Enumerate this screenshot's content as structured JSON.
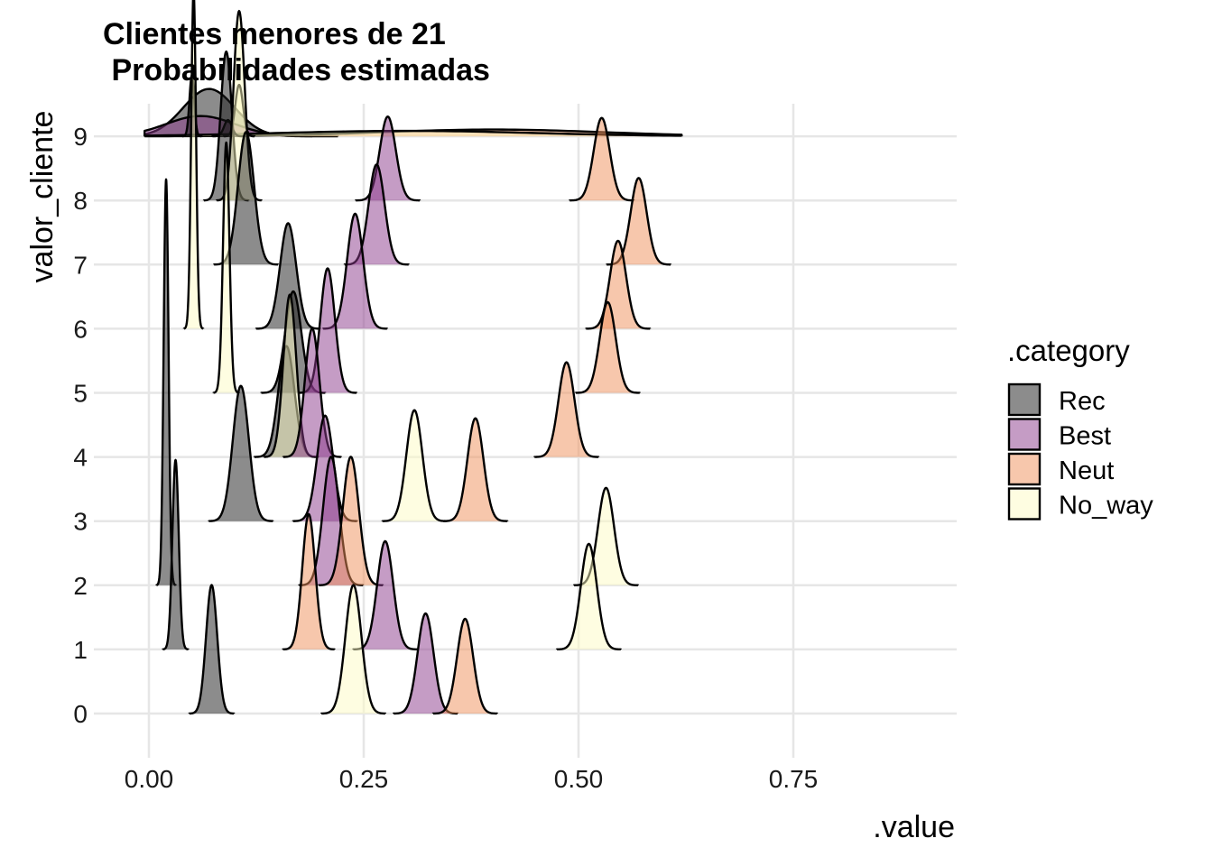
{
  "chart_data": {
    "type": "ridgeline",
    "title": [
      "Clientes menores de 21",
      " Probabilidades estimadas"
    ],
    "xlabel": ".value",
    "ylabel": "valor_cliente",
    "xlim": [
      -0.08,
      0.94
    ],
    "x_ticks": [
      {
        "value": 0.0,
        "label": "0.00"
      },
      {
        "value": 0.25,
        "label": "0.25"
      },
      {
        "value": 0.5,
        "label": "0.50"
      },
      {
        "value": 0.75,
        "label": "0.75"
      }
    ],
    "y_categories": [
      "0",
      "1",
      "2",
      "3",
      "4",
      "5",
      "6",
      "7",
      "8",
      "9"
    ],
    "grid": true,
    "legend": {
      "title": ".category",
      "position": "right",
      "entries": [
        {
          "name": "Rec",
          "color": "#1a1a1a"
        },
        {
          "name": "Best",
          "color": "#8c3a8c"
        },
        {
          "name": "Neut",
          "color": "#f0905a"
        },
        {
          "name": "No_way",
          "color": "#fdfbc4"
        }
      ]
    },
    "fill_opacity": 0.5,
    "series": [
      {
        "row": 0,
        "category": "Rec",
        "mean": 0.073,
        "sd": 0.0065,
        "height": 0.95
      },
      {
        "row": 0,
        "category": "No_way",
        "mean": 0.238,
        "sd": 0.0093,
        "height": 0.95
      },
      {
        "row": 0,
        "category": "Best",
        "mean": 0.322,
        "sd": 0.0093,
        "height": 0.74
      },
      {
        "row": 0,
        "category": "Neut",
        "mean": 0.368,
        "sd": 0.0093,
        "height": 0.7
      },
      {
        "row": 1,
        "category": "Rec",
        "mean": 0.031,
        "sd": 0.0037,
        "height": 1.4
      },
      {
        "row": 1,
        "category": "Neut",
        "mean": 0.186,
        "sd": 0.0075,
        "height": 1.0
      },
      {
        "row": 1,
        "category": "Best",
        "mean": 0.275,
        "sd": 0.0093,
        "height": 0.8
      },
      {
        "row": 1,
        "category": "No_way",
        "mean": 0.512,
        "sd": 0.0093,
        "height": 0.78
      },
      {
        "row": 2,
        "category": "Rec",
        "mean": 0.02,
        "sd": 0.0028,
        "height": 3.0
      },
      {
        "row": 2,
        "category": "Best",
        "mean": 0.212,
        "sd": 0.0093,
        "height": 0.95
      },
      {
        "row": 2,
        "category": "Neut",
        "mean": 0.235,
        "sd": 0.0093,
        "height": 0.95
      },
      {
        "row": 2,
        "category": "No_way",
        "mean": 0.532,
        "sd": 0.0093,
        "height": 0.72
      },
      {
        "row": 3,
        "category": "Rec",
        "mean": 0.107,
        "sd": 0.0093,
        "height": 1.0
      },
      {
        "row": 3,
        "category": "Best",
        "mean": 0.205,
        "sd": 0.0093,
        "height": 0.78
      },
      {
        "row": 3,
        "category": "No_way",
        "mean": 0.309,
        "sd": 0.0093,
        "height": 0.82
      },
      {
        "row": 3,
        "category": "Neut",
        "mean": 0.38,
        "sd": 0.0093,
        "height": 0.76
      },
      {
        "row": 4,
        "category": "Rec",
        "mean": 0.16,
        "sd": 0.0093,
        "height": 0.82
      },
      {
        "row": 4,
        "category": "No_way",
        "mean": 0.164,
        "sd": 0.0075,
        "height": 1.2
      },
      {
        "row": 4,
        "category": "Best",
        "mean": 0.19,
        "sd": 0.0084,
        "height": 0.95
      },
      {
        "row": 4,
        "category": "Neut",
        "mean": 0.486,
        "sd": 0.0093,
        "height": 0.7
      },
      {
        "row": 5,
        "category": "No_way",
        "mean": 0.09,
        "sd": 0.0037,
        "height": 1.85
      },
      {
        "row": 5,
        "category": "Rec",
        "mean": 0.168,
        "sd": 0.0093,
        "height": 0.75
      },
      {
        "row": 5,
        "category": "Best",
        "mean": 0.208,
        "sd": 0.0084,
        "height": 0.92
      },
      {
        "row": 5,
        "category": "Neut",
        "mean": 0.534,
        "sd": 0.0093,
        "height": 0.67
      },
      {
        "row": 6,
        "category": "No_way",
        "mean": 0.052,
        "sd": 0.0028,
        "height": 2.5
      },
      {
        "row": 6,
        "category": "Rec",
        "mean": 0.162,
        "sd": 0.0093,
        "height": 0.78
      },
      {
        "row": 6,
        "category": "Best",
        "mean": 0.24,
        "sd": 0.0093,
        "height": 0.85
      },
      {
        "row": 6,
        "category": "Neut",
        "mean": 0.546,
        "sd": 0.0093,
        "height": 0.65
      },
      {
        "row": 7,
        "category": "Rec",
        "mean": 0.113,
        "sd": 0.0093,
        "height": 0.98
      },
      {
        "row": 7,
        "category": "Best",
        "mean": 0.265,
        "sd": 0.0093,
        "height": 0.74
      },
      {
        "row": 7,
        "category": "Neut",
        "mean": 0.57,
        "sd": 0.0093,
        "height": 0.64
      },
      {
        "row": 8,
        "category": "Rec",
        "mean": 0.09,
        "sd": 0.0065,
        "height": 1.1
      },
      {
        "row": 8,
        "category": "No_way",
        "mean": 0.105,
        "sd": 0.0065,
        "height": 1.4
      },
      {
        "row": 8,
        "category": "Best",
        "mean": 0.278,
        "sd": 0.0093,
        "height": 0.62
      },
      {
        "row": 8,
        "category": "Neut",
        "mean": 0.527,
        "sd": 0.0093,
        "height": 0.61
      },
      {
        "row": 9,
        "category": "Rec",
        "mean": 0.07,
        "sd": 0.03,
        "height": 0.35
      },
      {
        "row": 9,
        "category": "Best",
        "mean": 0.06,
        "sd": 0.04,
        "height": 0.15
      },
      {
        "row": 9,
        "category": "Neut",
        "mean": 0.4,
        "sd": 0.13,
        "height": 0.05
      },
      {
        "row": 9,
        "category": "No_way",
        "mean": 0.3,
        "sd": 0.15,
        "height": 0.04
      },
      {
        "row": 9,
        "category": "No_way",
        "mean": 0.105,
        "sd": 0.0045,
        "height": 0.38
      },
      {
        "row": 9,
        "category": "Rec",
        "mean": 0.05,
        "sd": 0.0028,
        "height": 0.45
      },
      {
        "row": 9,
        "category": "Rec",
        "mean": 0.092,
        "sd": 0.0045,
        "height": 0.12
      }
    ]
  }
}
